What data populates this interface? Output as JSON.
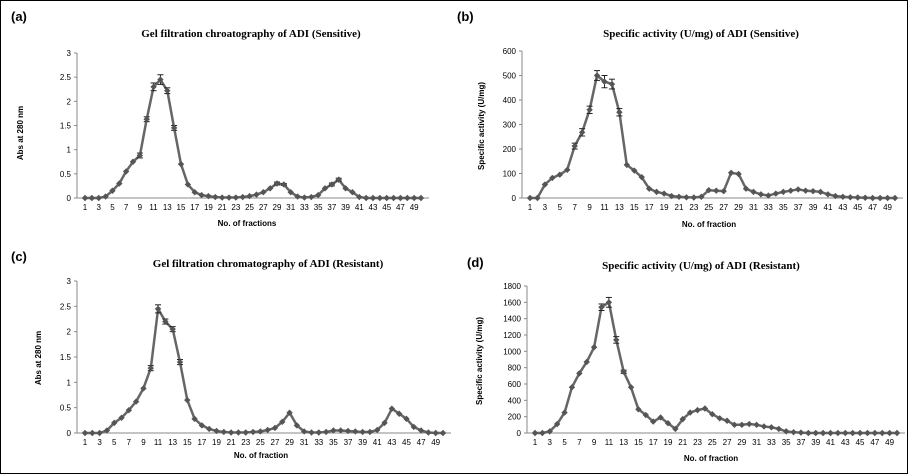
{
  "chart_data": [
    {
      "panel_label": "(a)",
      "type": "line",
      "title": "Gel filtration chroatography of ADI (Sensitive)",
      "xlabel": "No. of fractions",
      "ylabel": "Abs at 280 nm",
      "ylim": [
        0,
        3
      ],
      "yticks": [
        "0",
        "0.5",
        "1",
        "1.5",
        "2",
        "2.5",
        "3"
      ],
      "xtick_labels": [
        "1",
        "3",
        "5",
        "7",
        "9",
        "11",
        "13",
        "15",
        "17",
        "19",
        "21",
        "23",
        "25",
        "27",
        "29",
        "31",
        "33",
        "35",
        "37",
        "39",
        "41",
        "43",
        "45",
        "47",
        "49"
      ],
      "grid": false,
      "x": [
        1,
        2,
        3,
        4,
        5,
        6,
        7,
        8,
        9,
        10,
        11,
        12,
        13,
        14,
        15,
        16,
        17,
        18,
        19,
        20,
        21,
        22,
        23,
        24,
        25,
        26,
        27,
        28,
        29,
        30,
        31,
        32,
        33,
        34,
        35,
        36,
        37,
        38,
        39,
        40,
        41,
        42,
        43,
        44,
        45,
        46,
        47,
        48,
        49,
        50
      ],
      "values": [
        0,
        0,
        0,
        0.03,
        0.15,
        0.3,
        0.55,
        0.75,
        0.88,
        1.63,
        2.3,
        2.45,
        2.22,
        1.45,
        0.7,
        0.28,
        0.12,
        0.06,
        0.04,
        0.02,
        0.01,
        0.01,
        0.01,
        0.02,
        0.04,
        0.07,
        0.12,
        0.2,
        0.3,
        0.28,
        0.12,
        0.03,
        0.01,
        0.02,
        0.06,
        0.2,
        0.28,
        0.38,
        0.2,
        0.12,
        0.02,
        0,
        0,
        0,
        0,
        0,
        0,
        0,
        0,
        0
      ],
      "errors": [
        0,
        0,
        0,
        0,
        0,
        0,
        0,
        0,
        0.05,
        0.05,
        0.08,
        0.1,
        0.06,
        0.05,
        0,
        0,
        0,
        0,
        0,
        0,
        0,
        0,
        0,
        0,
        0,
        0,
        0,
        0,
        0.03,
        0.02,
        0,
        0,
        0,
        0,
        0,
        0,
        0.03,
        0.03,
        0,
        0,
        0,
        0,
        0,
        0,
        0,
        0,
        0,
        0,
        0,
        0
      ]
    },
    {
      "panel_label": "(b)",
      "type": "line",
      "title": "Specific activity  (U/mg) of ADI (Sensitive)",
      "xlabel": "No. of fraction",
      "ylabel": "Specific activity (U/mg)",
      "ylim": [
        0,
        600
      ],
      "yticks": [
        "0",
        "100",
        "200",
        "300",
        "400",
        "500",
        "600"
      ],
      "xtick_labels": [
        "1",
        "3",
        "5",
        "7",
        "9",
        "11",
        "13",
        "15",
        "17",
        "19",
        "21",
        "23",
        "25",
        "27",
        "29",
        "31",
        "33",
        "35",
        "37",
        "39",
        "41",
        "43",
        "45",
        "47",
        "49"
      ],
      "grid": false,
      "x": [
        1,
        2,
        3,
        4,
        5,
        6,
        7,
        8,
        9,
        10,
        11,
        12,
        13,
        14,
        15,
        16,
        17,
        18,
        19,
        20,
        21,
        22,
        23,
        24,
        25,
        26,
        27,
        28,
        29,
        30,
        31,
        32,
        33,
        34,
        35,
        36,
        37,
        38,
        39,
        40,
        41,
        42,
        43,
        44,
        45,
        46,
        47,
        48,
        49,
        50
      ],
      "values": [
        0,
        0,
        55,
        82,
        95,
        115,
        212,
        268,
        360,
        500,
        475,
        465,
        350,
        135,
        112,
        85,
        38,
        25,
        18,
        8,
        5,
        3,
        2,
        5,
        32,
        30,
        28,
        103,
        98,
        38,
        25,
        15,
        10,
        18,
        25,
        30,
        35,
        30,
        28,
        25,
        15,
        8,
        5,
        3,
        2,
        1,
        0,
        0,
        0,
        0
      ],
      "errors": [
        0,
        0,
        0,
        0,
        0,
        0,
        12,
        15,
        15,
        20,
        25,
        20,
        15,
        0,
        0,
        0,
        0,
        0,
        0,
        0,
        0,
        0,
        0,
        0,
        0,
        0,
        0,
        0,
        0,
        0,
        0,
        0,
        0,
        0,
        0,
        0,
        0,
        0,
        0,
        0,
        0,
        0,
        0,
        0,
        0,
        0,
        0,
        0,
        0,
        0
      ]
    },
    {
      "panel_label": "(c)",
      "type": "line",
      "title": "Gel filtration chromatography of ADI (Resistant)",
      "xlabel": "No. of fraction",
      "ylabel": "Abs at 280 nm",
      "ylim": [
        0,
        3
      ],
      "yticks": [
        "0",
        "0.5",
        "1",
        "1.5",
        "2",
        "2.5",
        "3"
      ],
      "xtick_labels": [
        "1",
        "3",
        "5",
        "7",
        "9",
        "11",
        "13",
        "15",
        "17",
        "19",
        "21",
        "23",
        "25",
        "27",
        "29",
        "31",
        "33",
        "35",
        "37",
        "39",
        "41",
        "43",
        "45",
        "47",
        "49"
      ],
      "grid": false,
      "x": [
        1,
        2,
        3,
        4,
        5,
        6,
        7,
        8,
        9,
        10,
        11,
        12,
        13,
        14,
        15,
        16,
        17,
        18,
        19,
        20,
        21,
        22,
        23,
        24,
        25,
        26,
        27,
        28,
        29,
        30,
        31,
        32,
        33,
        34,
        35,
        36,
        37,
        38,
        39,
        40,
        41,
        42,
        43,
        44,
        45,
        46,
        47,
        48,
        49,
        50
      ],
      "values": [
        0,
        0,
        0,
        0.05,
        0.2,
        0.3,
        0.45,
        0.62,
        0.88,
        1.28,
        2.45,
        2.2,
        2.05,
        1.4,
        0.65,
        0.28,
        0.15,
        0.08,
        0.04,
        0.02,
        0.01,
        0.01,
        0.01,
        0.02,
        0.03,
        0.06,
        0.1,
        0.22,
        0.4,
        0.15,
        0.03,
        0.01,
        0.01,
        0.02,
        0.05,
        0.05,
        0.04,
        0.03,
        0.02,
        0.02,
        0.06,
        0.2,
        0.48,
        0.38,
        0.28,
        0.12,
        0.05,
        0.01,
        0,
        0
      ],
      "errors": [
        0,
        0,
        0,
        0,
        0,
        0,
        0,
        0,
        0,
        0.05,
        0.08,
        0.05,
        0.05,
        0.05,
        0,
        0,
        0,
        0,
        0,
        0,
        0,
        0,
        0,
        0,
        0,
        0,
        0,
        0,
        0,
        0,
        0,
        0,
        0,
        0,
        0,
        0,
        0,
        0,
        0,
        0,
        0,
        0,
        0,
        0,
        0,
        0,
        0,
        0,
        0,
        0
      ]
    },
    {
      "panel_label": "(d)",
      "type": "line",
      "title": "Specific activity  (U/mg) of ADI (Resistant)",
      "xlabel": "No. of fraction",
      "ylabel": "Specific activity (U/mg)",
      "ylim": [
        0,
        1800
      ],
      "yticks": [
        "0",
        "200",
        "400",
        "600",
        "800",
        "1000",
        "1200",
        "1400",
        "1600",
        "1800"
      ],
      "xtick_labels": [
        "1",
        "3",
        "5",
        "7",
        "9",
        "11",
        "13",
        "15",
        "17",
        "19",
        "21",
        "23",
        "25",
        "27",
        "29",
        "31",
        "33",
        "35",
        "37",
        "39",
        "41",
        "43",
        "45",
        "47",
        "49"
      ],
      "grid": false,
      "x": [
        1,
        2,
        3,
        4,
        5,
        6,
        7,
        8,
        9,
        10,
        11,
        12,
        13,
        14,
        15,
        16,
        17,
        18,
        19,
        20,
        21,
        22,
        23,
        24,
        25,
        26,
        27,
        28,
        29,
        30,
        31,
        32,
        33,
        34,
        35,
        36,
        37,
        38,
        39,
        40,
        41,
        42,
        43,
        44,
        45,
        46,
        47,
        48,
        49,
        50
      ],
      "values": [
        0,
        0,
        20,
        110,
        250,
        560,
        730,
        870,
        1050,
        1540,
        1600,
        1140,
        750,
        560,
        290,
        220,
        140,
        190,
        120,
        50,
        170,
        250,
        280,
        300,
        230,
        180,
        150,
        100,
        100,
        110,
        100,
        80,
        70,
        50,
        20,
        10,
        5,
        0,
        0,
        0,
        0,
        0,
        0,
        0,
        0,
        0,
        0,
        0,
        0,
        0
      ],
      "errors": [
        0,
        0,
        0,
        0,
        0,
        0,
        0,
        0,
        0,
        40,
        60,
        40,
        20,
        0,
        0,
        0,
        0,
        0,
        0,
        0,
        0,
        0,
        0,
        0,
        0,
        0,
        0,
        0,
        0,
        0,
        0,
        0,
        0,
        0,
        0,
        0,
        0,
        0,
        0,
        0,
        0,
        0,
        0,
        0,
        0,
        0,
        0,
        0,
        0,
        0
      ]
    }
  ]
}
